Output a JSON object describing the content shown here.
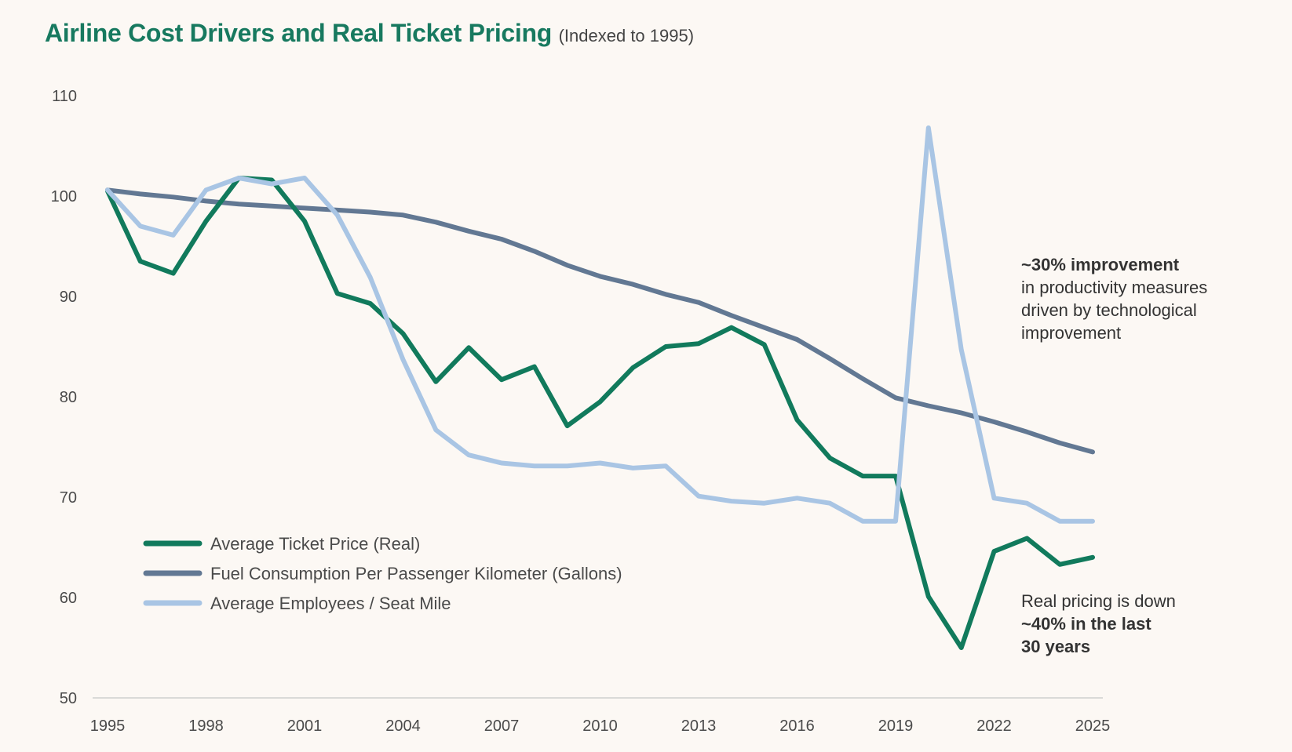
{
  "chart_data": {
    "type": "line",
    "title": "Airline Cost Drivers and Real Ticket Pricing",
    "subtitle": "(Indexed to 1995)",
    "xlabel": "",
    "ylabel": "",
    "xlim": [
      1995,
      2025
    ],
    "ylim": [
      50,
      110
    ],
    "yticks": [
      50,
      60,
      70,
      80,
      90,
      100,
      110
    ],
    "xticks": [
      1995,
      1998,
      2001,
      2004,
      2007,
      2010,
      2013,
      2016,
      2019,
      2022,
      2025
    ],
    "grid": false,
    "legend_position": "bottom-left",
    "x": [
      1995,
      1996,
      1997,
      1998,
      1999,
      2000,
      2001,
      2002,
      2003,
      2004,
      2005,
      2006,
      2007,
      2008,
      2009,
      2010,
      2011,
      2012,
      2013,
      2014,
      2015,
      2016,
      2017,
      2018,
      2019,
      2020,
      2021,
      2022,
      2023,
      2024,
      2025
    ],
    "series": [
      {
        "name": "Average Ticket Price (Real)",
        "color": "#117a5c",
        "values": [
          100.5,
          93.5,
          92.3,
          97.5,
          101.8,
          101.6,
          97.5,
          90.3,
          89.3,
          86.3,
          81.5,
          84.9,
          81.7,
          83.0,
          77.1,
          79.5,
          82.9,
          85.0,
          85.3,
          86.9,
          85.2,
          77.7,
          73.9,
          72.1,
          72.1,
          60.1,
          55.0,
          64.6,
          65.9,
          63.3,
          64.0
        ]
      },
      {
        "name": "Fuel Consumption Per Passenger Kilometer (Gallons)",
        "color": "#627893",
        "values": [
          100.6,
          100.2,
          99.9,
          99.5,
          99.2,
          99.0,
          98.8,
          98.6,
          98.4,
          98.1,
          97.4,
          96.5,
          95.7,
          94.5,
          93.1,
          92.0,
          91.2,
          90.2,
          89.4,
          88.1,
          86.9,
          85.7,
          83.8,
          81.8,
          79.9,
          79.1,
          78.4,
          77.5,
          76.5,
          75.4,
          74.5
        ]
      },
      {
        "name": "Average Employees / Seat Mile",
        "color": "#a9c5e4",
        "values": [
          100.6,
          97.0,
          96.1,
          100.6,
          101.8,
          101.2,
          101.8,
          98.1,
          91.9,
          83.7,
          76.7,
          74.2,
          73.4,
          73.1,
          73.1,
          73.4,
          72.9,
          73.1,
          70.1,
          69.6,
          69.4,
          69.9,
          69.4,
          67.6,
          67.6,
          106.8,
          84.7,
          69.9,
          69.4,
          67.6,
          67.6
        ]
      }
    ],
    "annotations": [
      {
        "lines": [
          {
            "text": "~30% improvement",
            "bold": true
          },
          {
            "text": "in productivity measures",
            "bold": false
          },
          {
            "text": "driven by technological",
            "bold": false
          },
          {
            "text": "improvement",
            "bold": false
          }
        ]
      },
      {
        "lines": [
          {
            "text": "Real pricing is down",
            "bold": false
          },
          {
            "text": "~40% in the last",
            "bold": true
          },
          {
            "text": "30 years",
            "bold": true
          }
        ]
      }
    ]
  }
}
